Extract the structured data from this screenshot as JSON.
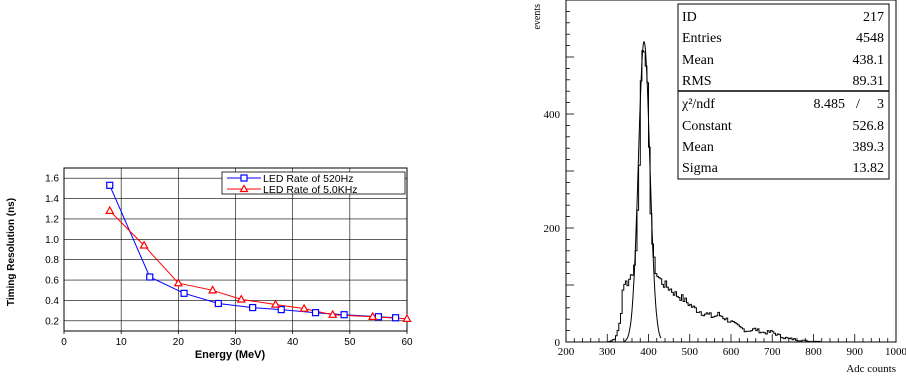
{
  "chart_data": [
    {
      "type": "line",
      "title": "",
      "xlabel": "Energy (MeV)",
      "ylabel": "Timing Resolution (ns)",
      "xlim": [
        0,
        60
      ],
      "ylim": [
        0.1,
        1.7
      ],
      "x_ticks": [
        "0",
        "10",
        "20",
        "30",
        "40",
        "50",
        "60"
      ],
      "y_ticks": [
        "0.2",
        "0.4",
        "0.6",
        "0.8",
        "1.0",
        "1.2",
        "1.4",
        "1.6"
      ],
      "grid": true,
      "legend_position": "top-right",
      "series": [
        {
          "name": "LED Rate of 520Hz",
          "color": "#0000ff",
          "marker": "square",
          "points": [
            [
              8,
              1.53
            ],
            [
              15,
              0.63
            ],
            [
              21,
              0.47
            ],
            [
              27,
              0.37
            ],
            [
              33,
              0.33
            ],
            [
              38,
              0.31
            ],
            [
              44,
              0.28
            ],
            [
              49,
              0.26
            ],
            [
              55,
              0.24
            ],
            [
              58,
              0.23
            ]
          ]
        },
        {
          "name": "LED Rate of 5.0KHz",
          "color": "#ff0000",
          "marker": "triangle",
          "points": [
            [
              8,
              1.28
            ],
            [
              14,
              0.94
            ],
            [
              20,
              0.57
            ],
            [
              26,
              0.5
            ],
            [
              31,
              0.41
            ],
            [
              37,
              0.36
            ],
            [
              42,
              0.32
            ],
            [
              47,
              0.26
            ],
            [
              54,
              0.24
            ],
            [
              60,
              0.22
            ]
          ]
        }
      ]
    },
    {
      "type": "histogram",
      "title": "",
      "xlabel": "Adc counts",
      "ylabel": "events",
      "xlim": [
        200,
        1000
      ],
      "ylim": [
        0,
        600
      ],
      "x_ticks": [
        "200",
        "300",
        "400",
        "500",
        "600",
        "700",
        "800",
        "900",
        "1000"
      ],
      "y_ticks": [
        "0",
        "200",
        "400"
      ],
      "grid": false,
      "bin_width": 4,
      "profile": [
        [
          200,
          0
        ],
        [
          300,
          0
        ],
        [
          312,
          2
        ],
        [
          320,
          8
        ],
        [
          326,
          20
        ],
        [
          332,
          40
        ],
        [
          338,
          85
        ],
        [
          345,
          110
        ],
        [
          352,
          100
        ],
        [
          360,
          120
        ],
        [
          366,
          135
        ],
        [
          372,
          180
        ],
        [
          378,
          320
        ],
        [
          383,
          490
        ],
        [
          388,
          525
        ],
        [
          393,
          515
        ],
        [
          398,
          440
        ],
        [
          403,
          300
        ],
        [
          408,
          190
        ],
        [
          414,
          140
        ],
        [
          420,
          118
        ],
        [
          430,
          108
        ],
        [
          440,
          100
        ],
        [
          450,
          95
        ],
        [
          460,
          88
        ],
        [
          470,
          82
        ],
        [
          480,
          78
        ],
        [
          490,
          72
        ],
        [
          500,
          66
        ],
        [
          510,
          60
        ],
        [
          520,
          56
        ],
        [
          530,
          52
        ],
        [
          540,
          50
        ],
        [
          550,
          46
        ],
        [
          560,
          44
        ],
        [
          570,
          48
        ],
        [
          580,
          45
        ],
        [
          590,
          40
        ],
        [
          600,
          36
        ],
        [
          610,
          30
        ],
        [
          620,
          26
        ],
        [
          640,
          20
        ],
        [
          660,
          22
        ],
        [
          680,
          16
        ],
        [
          700,
          18
        ],
        [
          720,
          10
        ],
        [
          740,
          6
        ],
        [
          760,
          4
        ],
        [
          780,
          2
        ],
        [
          800,
          1
        ],
        [
          830,
          0
        ],
        [
          1000,
          0
        ]
      ],
      "fit": {
        "function": "gaus",
        "constant": 526.8,
        "mean": 389.3,
        "sigma": 13.82,
        "range": [
          340,
          430
        ]
      },
      "stats_box": {
        "rows": [
          {
            "label": "ID",
            "value": "217"
          },
          {
            "label": "Entries",
            "value": "4548"
          },
          {
            "label": "Mean",
            "value": "438.1"
          },
          {
            "label": "RMS",
            "value": "89.31"
          }
        ],
        "fit_rows": [
          {
            "label": "Constant",
            "value": "526.8"
          },
          {
            "label": "Mean",
            "value": "389.3"
          },
          {
            "label": "Sigma",
            "value": "13.82"
          }
        ],
        "chi2_label": "χ²/ndf",
        "chi2_value": "8.485",
        "chi2_sep": "/",
        "ndf_value": "3"
      }
    }
  ]
}
